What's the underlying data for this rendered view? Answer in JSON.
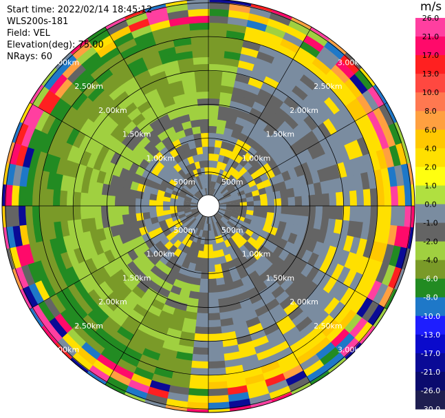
{
  "header": {
    "start_time": "Start time: 2022/02/14 18:45:12",
    "instrument": "WLS200s-181",
    "field": "Field: VEL",
    "elevation": "Elevation(deg): 75.00",
    "nrays": "NRays: 60"
  },
  "colorbar": {
    "unit": "m/s",
    "ticks": [
      "26.0",
      "21.0",
      "17.0",
      "13.0",
      "10.0",
      "8.0",
      "6.0",
      "4.0",
      "2.0",
      "1.0",
      "0.0",
      "-1.0",
      "-2.0",
      "-4.0",
      "-6.0",
      "-8.0",
      "-10.0",
      "-13.0",
      "-17.0",
      "-21.0",
      "-26.0",
      "-30.0"
    ],
    "colors": [
      "#ff3fa0",
      "#ff0a6a",
      "#ff2020",
      "#ff4840",
      "#ff7850",
      "#ffa040",
      "#ffc800",
      "#ffe000",
      "#ffff10",
      "#b0e040",
      "#7a8ca0",
      "#646464",
      "#a0d040",
      "#7a9a28",
      "#228b22",
      "#1e78c8",
      "#1e1eff",
      "#0a0acc",
      "#0a0a96",
      "#0a0a6e",
      "#1e1e50"
    ]
  },
  "chart_data": {
    "type": "heatmap",
    "projection": "polar PPI (plan position indicator)",
    "field": "VEL",
    "units": "m/s",
    "nrays": 60,
    "range_rings_km": [
      0.5,
      1.0,
      1.5,
      2.0,
      2.5,
      3.0
    ],
    "ring_labels": [
      "500m",
      "1.00km",
      "1.50km",
      "2.00km",
      "2.50km",
      "3.00km"
    ],
    "value_range": [
      -30,
      30
    ],
    "regions": [
      {
        "sector": "north-east to south (azimuth 0-180)",
        "near_range_velocity": "0.0 to 2.0",
        "far_range_velocity": "2.0 to 6.0"
      },
      {
        "sector": "south-west to north (azimuth 180-360)",
        "near_range_velocity": "0.0 to -2.0",
        "far_range_velocity": "-2.0 to -6.0"
      },
      {
        "sector": "outer edge ring (beyond 3.00km)",
        "velocity": "noisy, mixed -30 to 26"
      }
    ]
  }
}
